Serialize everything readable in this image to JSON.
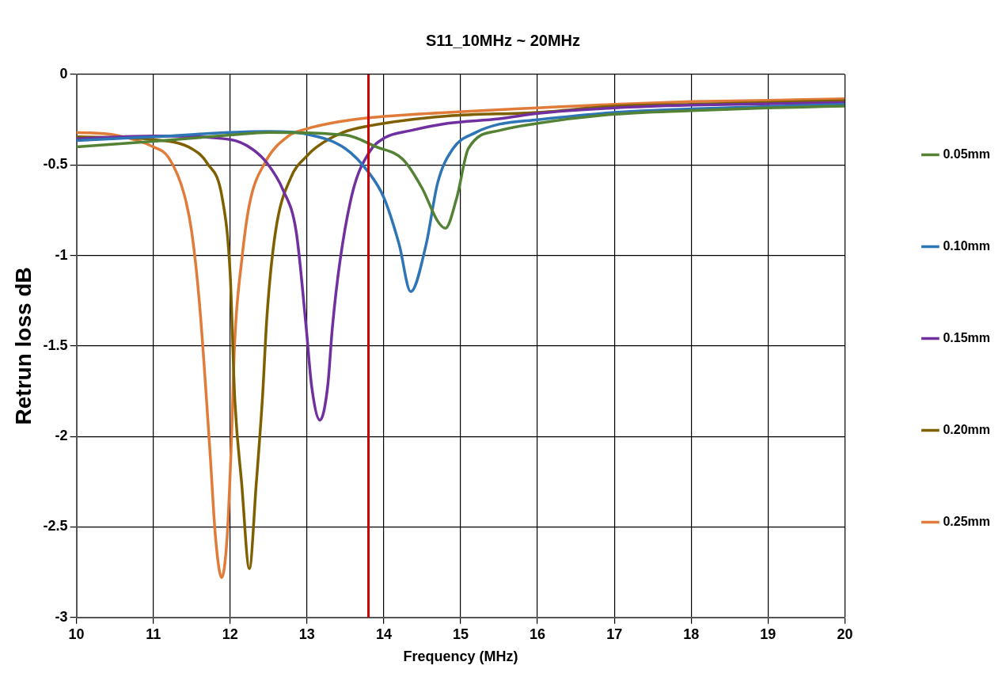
{
  "chart_data": {
    "type": "line",
    "title": "S11_10MHz ~ 20MHz",
    "xlabel": "Frequency (MHz)",
    "ylabel": "Retrun loss dB",
    "xlim": [
      10,
      20
    ],
    "xticks": [
      10,
      11,
      12,
      13,
      14,
      15,
      16,
      17,
      18,
      19,
      20
    ],
    "ylim": [
      -3,
      0
    ],
    "yticks": [
      -3,
      -2.5,
      -2,
      -1.5,
      -1,
      -0.5,
      0
    ],
    "grid": true,
    "legend": "right",
    "marker": "none",
    "ref_lines": [
      {
        "axis": "x",
        "value": 13.8,
        "color": "#cc0000"
      }
    ],
    "series": [
      {
        "name": "0.05mm",
        "color": "#548235",
        "x": [
          10,
          11,
          12,
          12.5,
          13.5,
          13.9,
          14.25,
          14.5,
          14.7,
          14.8,
          14.95,
          15.1,
          15.5,
          16,
          17,
          18,
          19,
          20
        ],
        "values": [
          -0.4,
          -0.37,
          -0.335,
          -0.32,
          -0.335,
          -0.4,
          -0.47,
          -0.63,
          -0.81,
          -0.85,
          -0.68,
          -0.41,
          -0.31,
          -0.27,
          -0.22,
          -0.2,
          -0.185,
          -0.175
        ]
      },
      {
        "name": "0.10mm",
        "color": "#2e75b6",
        "x": [
          10,
          11,
          12,
          12.5,
          13,
          13.5,
          13.8,
          14,
          14.2,
          14.35,
          14.55,
          14.7,
          14.9,
          15.2,
          15.5,
          16,
          17,
          18,
          20
        ],
        "values": [
          -0.365,
          -0.345,
          -0.32,
          -0.315,
          -0.33,
          -0.41,
          -0.54,
          -0.68,
          -0.94,
          -1.2,
          -0.94,
          -0.6,
          -0.41,
          -0.32,
          -0.275,
          -0.25,
          -0.21,
          -0.19,
          -0.165
        ]
      },
      {
        "name": "0.15mm",
        "color": "#7030a0",
        "x": [
          10,
          11,
          12,
          12.28,
          12.48,
          12.69,
          12.86,
          12.99,
          13.06,
          13.17,
          13.27,
          13.33,
          13.43,
          13.6,
          13.81,
          14.01,
          14.35,
          14.83,
          15.5,
          16,
          17,
          18,
          20
        ],
        "values": [
          -0.355,
          -0.34,
          -0.36,
          -0.41,
          -0.49,
          -0.64,
          -0.87,
          -1.4,
          -1.72,
          -1.91,
          -1.72,
          -1.4,
          -1.03,
          -0.64,
          -0.43,
          -0.35,
          -0.31,
          -0.27,
          -0.245,
          -0.215,
          -0.185,
          -0.17,
          -0.155
        ]
      },
      {
        "name": "0.20mm",
        "color": "#7f6000",
        "x": [
          10,
          11,
          11.5,
          11.7,
          11.9,
          12,
          12.06,
          12.15,
          12.25,
          12.34,
          12.42,
          12.48,
          12.59,
          12.79,
          13,
          13.13,
          13.47,
          13.8,
          14.83,
          16,
          17,
          18,
          20
        ],
        "values": [
          -0.345,
          -0.36,
          -0.41,
          -0.49,
          -0.69,
          -1.1,
          -1.79,
          -2.26,
          -2.73,
          -2.26,
          -1.79,
          -1.33,
          -0.87,
          -0.57,
          -0.45,
          -0.4,
          -0.32,
          -0.285,
          -0.23,
          -0.21,
          -0.175,
          -0.165,
          -0.145
        ]
      },
      {
        "name": "0.25mm",
        "color": "#e07b39",
        "x": [
          10,
          10.5,
          11,
          11.2,
          11.4,
          11.5,
          11.6,
          11.74,
          11.81,
          11.89,
          11.96,
          12.01,
          12.06,
          12.15,
          12.25,
          12.45,
          12.76,
          13,
          13.3,
          13.8,
          14.83,
          16,
          17,
          18,
          19,
          20
        ],
        "values": [
          -0.32,
          -0.335,
          -0.4,
          -0.46,
          -0.66,
          -0.87,
          -1.26,
          -2.1,
          -2.56,
          -2.78,
          -2.56,
          -2.1,
          -1.47,
          -1.03,
          -0.72,
          -0.49,
          -0.34,
          -0.3,
          -0.27,
          -0.24,
          -0.21,
          -0.185,
          -0.165,
          -0.15,
          -0.143,
          -0.135
        ]
      }
    ]
  }
}
